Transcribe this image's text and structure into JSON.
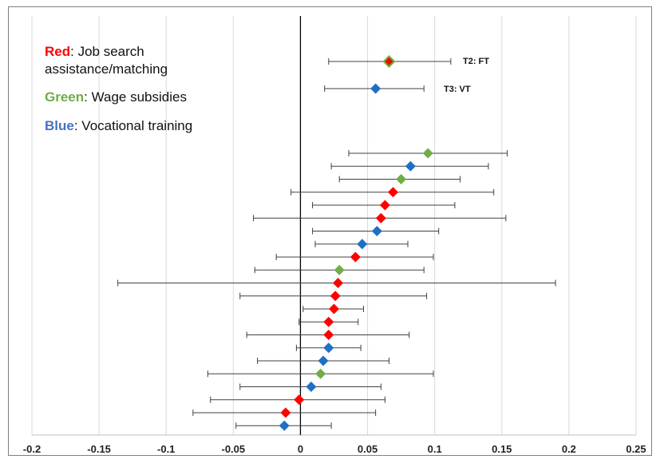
{
  "colors": {
    "red": "#ff0000",
    "green": "#70ad47",
    "blue": "#1f6fc5",
    "legend_red": "#ff0000",
    "legend_green": "#70ad47",
    "legend_blue": "#4472c4",
    "grid": "#d9d9d9",
    "frame": "#7f7f7f",
    "zero_line": "#000000",
    "errorbar": "#404040"
  },
  "legend": {
    "red_key": "Red",
    "red_desc": ": Job search assistance/matching",
    "red_line1": ": Job search",
    "red_line2": "assistance/matching",
    "green_key": "Green",
    "green_desc": ": Wage subsidies",
    "blue_key": "Blue",
    "blue_desc": ": Vocational training"
  },
  "annotations": {
    "t2": "T2: FT",
    "t3": "T3: VT"
  },
  "chart_data": {
    "type": "scatter",
    "subtype": "forest-plot",
    "title": "",
    "xlabel": "",
    "ylabel": "",
    "xlim": [
      -0.2,
      0.25
    ],
    "xticks": [
      -0.2,
      -0.15,
      -0.1,
      -0.05,
      0,
      0.05,
      0.1,
      0.15,
      0.2,
      0.25
    ],
    "xtick_labels": [
      "-0.2",
      "-0.15",
      "-0.1",
      "-0.05",
      "0",
      "0.05",
      "0.1",
      "0.15",
      "0.2",
      "0.25"
    ],
    "grid": "vertical",
    "legend_placement": "top-left",
    "highlighted": [
      {
        "label": "T2: FT",
        "estimate": 0.066,
        "low": 0.021,
        "high": 0.112,
        "color": "red",
        "outlined": "green"
      },
      {
        "label": "T3: VT",
        "estimate": 0.056,
        "low": 0.018,
        "high": 0.092,
        "color": "blue"
      }
    ],
    "points": [
      {
        "estimate": 0.095,
        "low": 0.036,
        "high": 0.154,
        "color": "green"
      },
      {
        "estimate": 0.082,
        "low": 0.023,
        "high": 0.14,
        "color": "blue"
      },
      {
        "estimate": 0.075,
        "low": 0.029,
        "high": 0.119,
        "color": "green"
      },
      {
        "estimate": 0.069,
        "low": -0.007,
        "high": 0.144,
        "color": "red"
      },
      {
        "estimate": 0.063,
        "low": 0.009,
        "high": 0.115,
        "color": "red"
      },
      {
        "estimate": 0.06,
        "low": -0.035,
        "high": 0.153,
        "color": "red"
      },
      {
        "estimate": 0.057,
        "low": 0.009,
        "high": 0.103,
        "color": "blue"
      },
      {
        "estimate": 0.046,
        "low": 0.011,
        "high": 0.08,
        "color": "blue"
      },
      {
        "estimate": 0.041,
        "low": -0.018,
        "high": 0.099,
        "color": "red"
      },
      {
        "estimate": 0.029,
        "low": -0.034,
        "high": 0.092,
        "color": "green"
      },
      {
        "estimate": 0.028,
        "low": -0.136,
        "high": 0.19,
        "color": "red"
      },
      {
        "estimate": 0.026,
        "low": -0.045,
        "high": 0.094,
        "color": "red"
      },
      {
        "estimate": 0.025,
        "low": 0.002,
        "high": 0.047,
        "color": "red"
      },
      {
        "estimate": 0.021,
        "low": -0.001,
        "high": 0.043,
        "color": "red"
      },
      {
        "estimate": 0.021,
        "low": -0.04,
        "high": 0.081,
        "color": "red"
      },
      {
        "estimate": 0.021,
        "low": -0.003,
        "high": 0.045,
        "color": "blue"
      },
      {
        "estimate": 0.017,
        "low": -0.032,
        "high": 0.066,
        "color": "blue"
      },
      {
        "estimate": 0.015,
        "low": -0.069,
        "high": 0.099,
        "color": "green"
      },
      {
        "estimate": 0.008,
        "low": -0.045,
        "high": 0.06,
        "color": "blue"
      },
      {
        "estimate": -0.001,
        "low": -0.067,
        "high": 0.063,
        "color": "red"
      },
      {
        "estimate": -0.011,
        "low": -0.08,
        "high": 0.056,
        "color": "red"
      },
      {
        "estimate": -0.012,
        "low": -0.048,
        "high": 0.023,
        "color": "blue"
      }
    ]
  }
}
